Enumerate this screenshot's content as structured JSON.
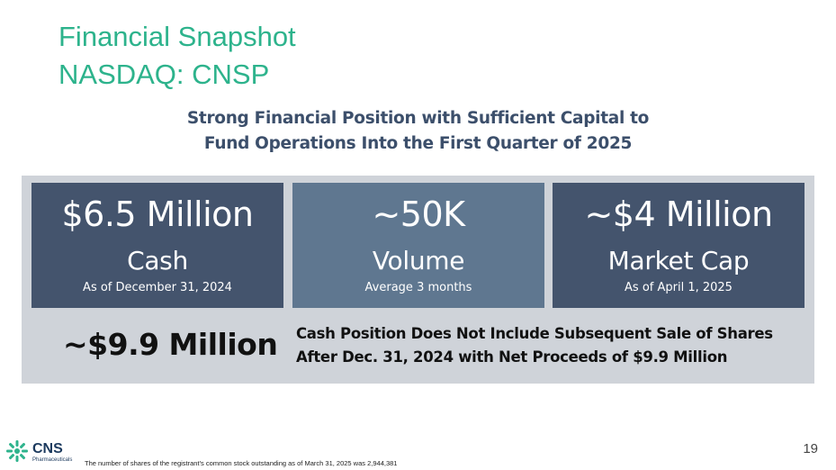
{
  "header": {
    "title_line1": "Financial Snapshot",
    "title_line2": "NASDAQ: CNSP"
  },
  "subtitle": {
    "line1": "Strong Financial Position with Sufficient Capital to",
    "line2": "Fund Operations Into the First Quarter of 2025"
  },
  "cards": [
    {
      "value": "$6.5 Million",
      "label": "Cash",
      "note": "As of December 31, 2024"
    },
    {
      "value": "~50K",
      "label": "Volume",
      "note": "Average 3 months"
    },
    {
      "value": "~$4 Million",
      "label": "Market Cap",
      "note": "As of April 1, 2025"
    }
  ],
  "proceeds": {
    "figure": "~$9.9 Million",
    "note_line1": "Cash Position Does Not Include Subsequent Sale of Shares",
    "note_line2": "After Dec. 31, 2024 with Net Proceeds of $9.9 Million"
  },
  "logo": {
    "name": "CNS",
    "sub": "Pharmaceuticals",
    "icon": "cns-logo-icon"
  },
  "footnote": "The number of shares of the registrant's common stock outstanding as of March 31, 2025 was 2,944,381",
  "page_number": "19",
  "colors": {
    "title": "#2db38c",
    "subtitle": "#3c4f6b",
    "panel": "#cfd3d9",
    "card_dark": "#44546d",
    "card_light": "#5f7790"
  }
}
